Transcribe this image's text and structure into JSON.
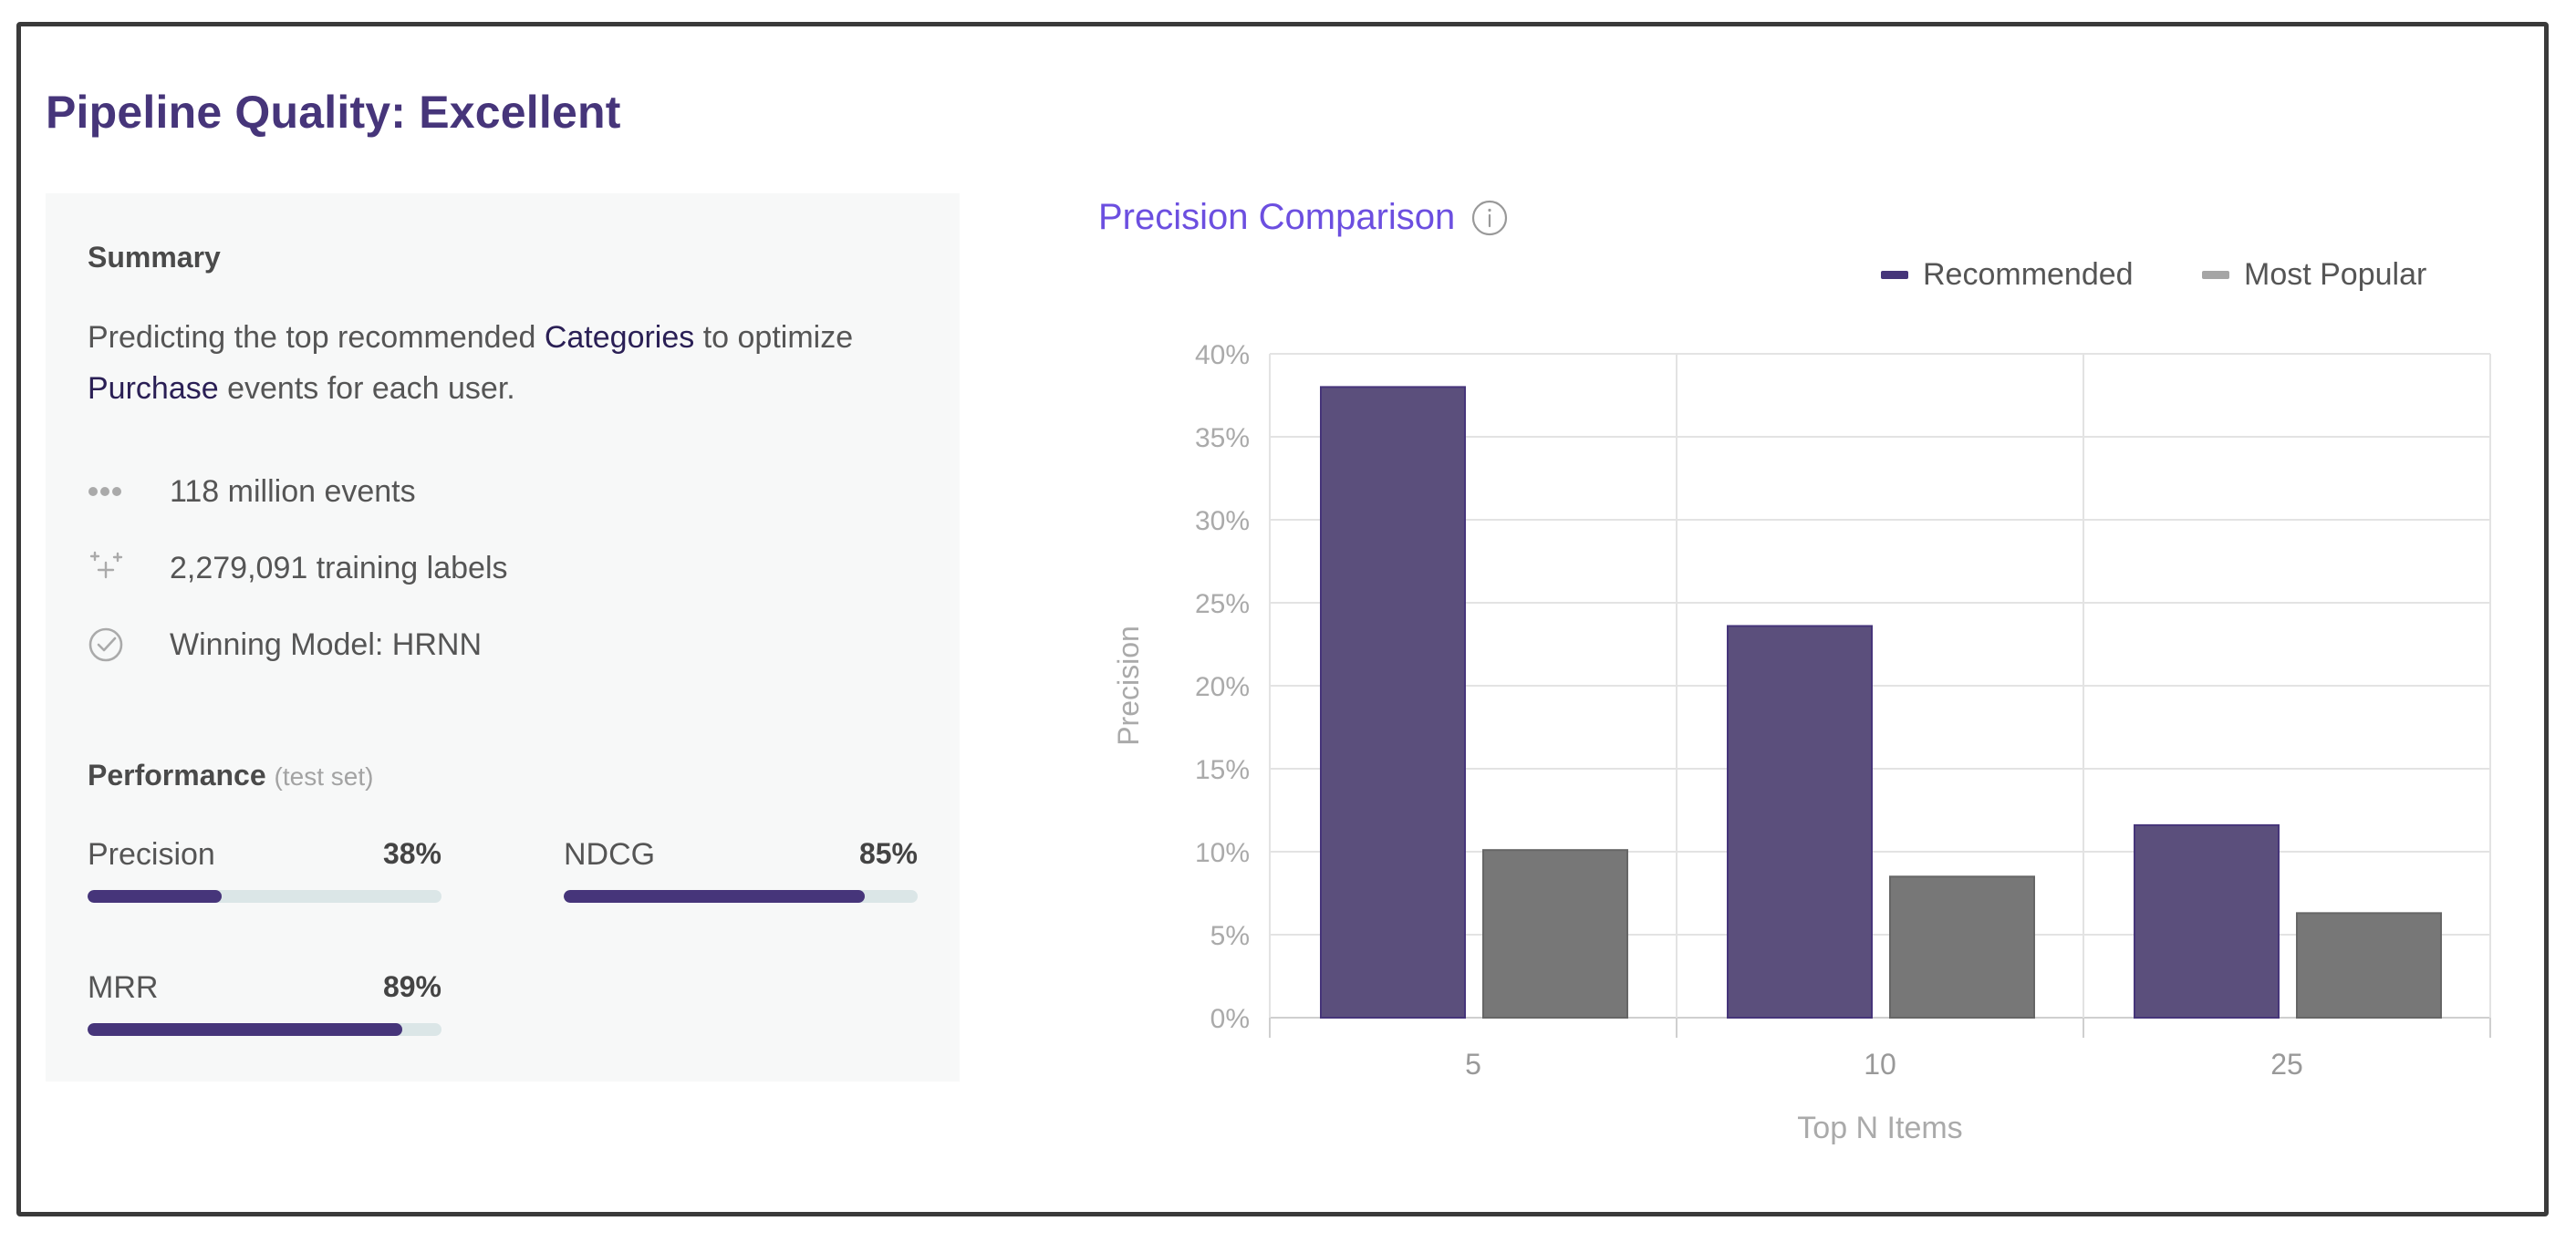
{
  "page": {
    "title": "Pipeline Quality: Excellent"
  },
  "summary": {
    "heading": "Summary",
    "sentence_parts": [
      "Predicting the top recommended ",
      "Categories",
      " to optimize ",
      "Purchase",
      " events for each user."
    ],
    "stats": [
      {
        "icon": "dots-icon",
        "text": "118 million events"
      },
      {
        "icon": "sparkle-icon",
        "text": "2,279,091 training labels"
      },
      {
        "icon": "check-circle-icon",
        "text": "Winning Model: HRNN"
      }
    ]
  },
  "performance": {
    "heading": "Performance",
    "note": "(test set)",
    "metrics": [
      {
        "name": "Precision",
        "value_label": "38%",
        "fraction": 0.38
      },
      {
        "name": "NDCG",
        "value_label": "85%",
        "fraction": 0.85
      },
      {
        "name": "MRR",
        "value_label": "89%",
        "fraction": 0.89
      }
    ]
  },
  "colors": {
    "accent": "#46357a",
    "bar_recommended": "#5b4f7c",
    "bar_popular": "#777777",
    "chart_title": "#6c4fe0",
    "track": "#dbe6e7"
  },
  "chart_data": {
    "type": "bar",
    "title": "Precision Comparison",
    "xlabel": "Top N Items",
    "ylabel": "Precision",
    "categories": [
      "5",
      "10",
      "25"
    ],
    "series": [
      {
        "name": "Recommended",
        "values": [
          38,
          23.6,
          11.6
        ],
        "color": "#5b4f7c"
      },
      {
        "name": "Most Popular",
        "values": [
          10.1,
          8.5,
          6.3
        ],
        "color": "#777777"
      }
    ],
    "yticks": [
      "0%",
      "5%",
      "10%",
      "15%",
      "20%",
      "25%",
      "30%",
      "35%",
      "40%"
    ],
    "ylim": [
      0,
      40
    ],
    "grid": true,
    "legend_position": "top-right"
  }
}
